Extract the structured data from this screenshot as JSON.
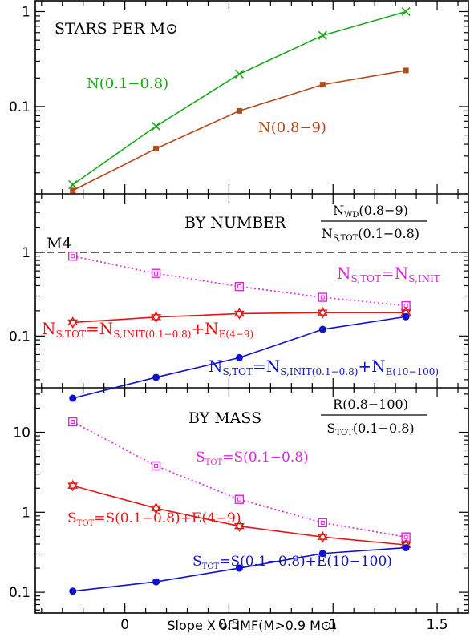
{
  "chart_data": [
    {
      "type": "line",
      "panel": "top",
      "title": "STARS PER M⊙",
      "ylog": true,
      "ylim": [
        0.012,
        1.3
      ],
      "xlim": [
        -0.43,
        1.65
      ],
      "ytick_labels": [
        "1",
        "0.1"
      ],
      "ytick_values": [
        1,
        0.1
      ],
      "series": [
        {
          "name": "N(0.1−0.8)",
          "color": "#1aa81a",
          "marker": "x",
          "x": [
            -0.25,
            0.15,
            0.55,
            0.95,
            1.35
          ],
          "y": [
            0.015,
            0.062,
            0.22,
            0.56,
            1.0
          ]
        },
        {
          "name": "N(0.8−9)",
          "color": "#b34a1e",
          "marker": "square-filled",
          "x": [
            -0.25,
            0.15,
            0.55,
            0.95,
            1.35
          ],
          "y": [
            0.013,
            0.036,
            0.09,
            0.17,
            0.24
          ]
        }
      ]
    },
    {
      "type": "line",
      "panel": "middle",
      "title": "BY NUMBER",
      "ylog": true,
      "ylim": [
        0.024,
        5
      ],
      "xlim": [
        -0.43,
        1.65
      ],
      "ytick_labels": [
        "1",
        "0.1"
      ],
      "ytick_values": [
        1,
        0.1
      ],
      "reference_line": {
        "label": "M4",
        "y": 1
      },
      "ratio_label": {
        "numerator": "N",
        "numerator_sub": "WD",
        "numerator_tail": "(0.8−9)",
        "denominator": "N",
        "denominator_sub": "S,TOT",
        "denominator_tail": "(0.1−0.8)"
      },
      "series": [
        {
          "label": "N",
          "label_sub": "S,TOT",
          "label_tail": "=N",
          "label_sub2": "S,INIT",
          "color": "#e020e0",
          "marker": "square-open",
          "dash": "dotted",
          "x": [
            -0.25,
            0.15,
            0.55,
            0.95,
            1.35
          ],
          "y": [
            0.9,
            0.56,
            0.39,
            0.29,
            0.23
          ]
        },
        {
          "label": "N",
          "label_sub": "S,TOT",
          "label_tail": "=N",
          "label_sub2": "S,INIT(0.1−0.8)",
          "label_tail2": "+N",
          "label_sub3": "E(4−9)",
          "color": "#e51515",
          "marker": "star",
          "dash": "solid",
          "x": [
            -0.25,
            0.15,
            0.55,
            0.95,
            1.35
          ],
          "y": [
            0.145,
            0.168,
            0.185,
            0.19,
            0.19
          ]
        },
        {
          "label": "N",
          "label_sub": "S,TOT",
          "label_tail": "=N",
          "label_sub2": "S,INIT(0.1−0.8)",
          "label_tail2": "+N",
          "label_sub3": "E(10−100)",
          "color": "#1010d0",
          "marker": "circle",
          "dash": "solid",
          "x": [
            -0.25,
            0.15,
            0.55,
            0.95,
            1.35
          ],
          "y": [
            0.018,
            0.032,
            0.055,
            0.12,
            0.17
          ]
        }
      ]
    },
    {
      "type": "line",
      "panel": "bottom",
      "title": "BY MASS",
      "ylog": true,
      "ylim": [
        0.055,
        36
      ],
      "xlim": [
        -0.43,
        1.65
      ],
      "ytick_labels": [
        "10",
        "1",
        "0.1"
      ],
      "ytick_values": [
        10,
        1,
        0.1
      ],
      "xtick_labels": [
        "0",
        "0.5",
        "1",
        "1.5"
      ],
      "xtick_values": [
        0,
        0.5,
        1,
        1.5
      ],
      "xlabel": "Slope X of IMF(M>0.9 M⊙)",
      "ratio_label": {
        "numerator": "R(0.8−100)",
        "denominator": "S",
        "denominator_sub": "TOT",
        "denominator_tail": "(0.1−0.8)"
      },
      "series": [
        {
          "label": "S",
          "label_sub": "TOT",
          "label_tail": "=S(0.1−0.8)",
          "color": "#e020e0",
          "marker": "square-open",
          "dash": "dotted",
          "x": [
            -0.25,
            0.15,
            0.55,
            0.95,
            1.35
          ],
          "y": [
            13.5,
            3.8,
            1.45,
            0.74,
            0.49
          ]
        },
        {
          "label": "S",
          "label_sub": "TOT",
          "label_tail": "=S(0.1−0.8)+E(4−9)",
          "color": "#e51515",
          "marker": "star",
          "dash": "solid",
          "x": [
            -0.25,
            0.15,
            0.55,
            0.95,
            1.35
          ],
          "y": [
            2.15,
            1.12,
            0.67,
            0.49,
            0.39
          ]
        },
        {
          "label": "S",
          "label_sub": "TOT",
          "label_tail": "=S(0.1−0.8)+E(10−100)",
          "color": "#1010d0",
          "marker": "circle",
          "dash": "solid",
          "x": [
            -0.25,
            0.15,
            0.55,
            0.95,
            1.35
          ],
          "y": [
            0.103,
            0.135,
            0.2,
            0.305,
            0.36
          ]
        }
      ]
    }
  ]
}
